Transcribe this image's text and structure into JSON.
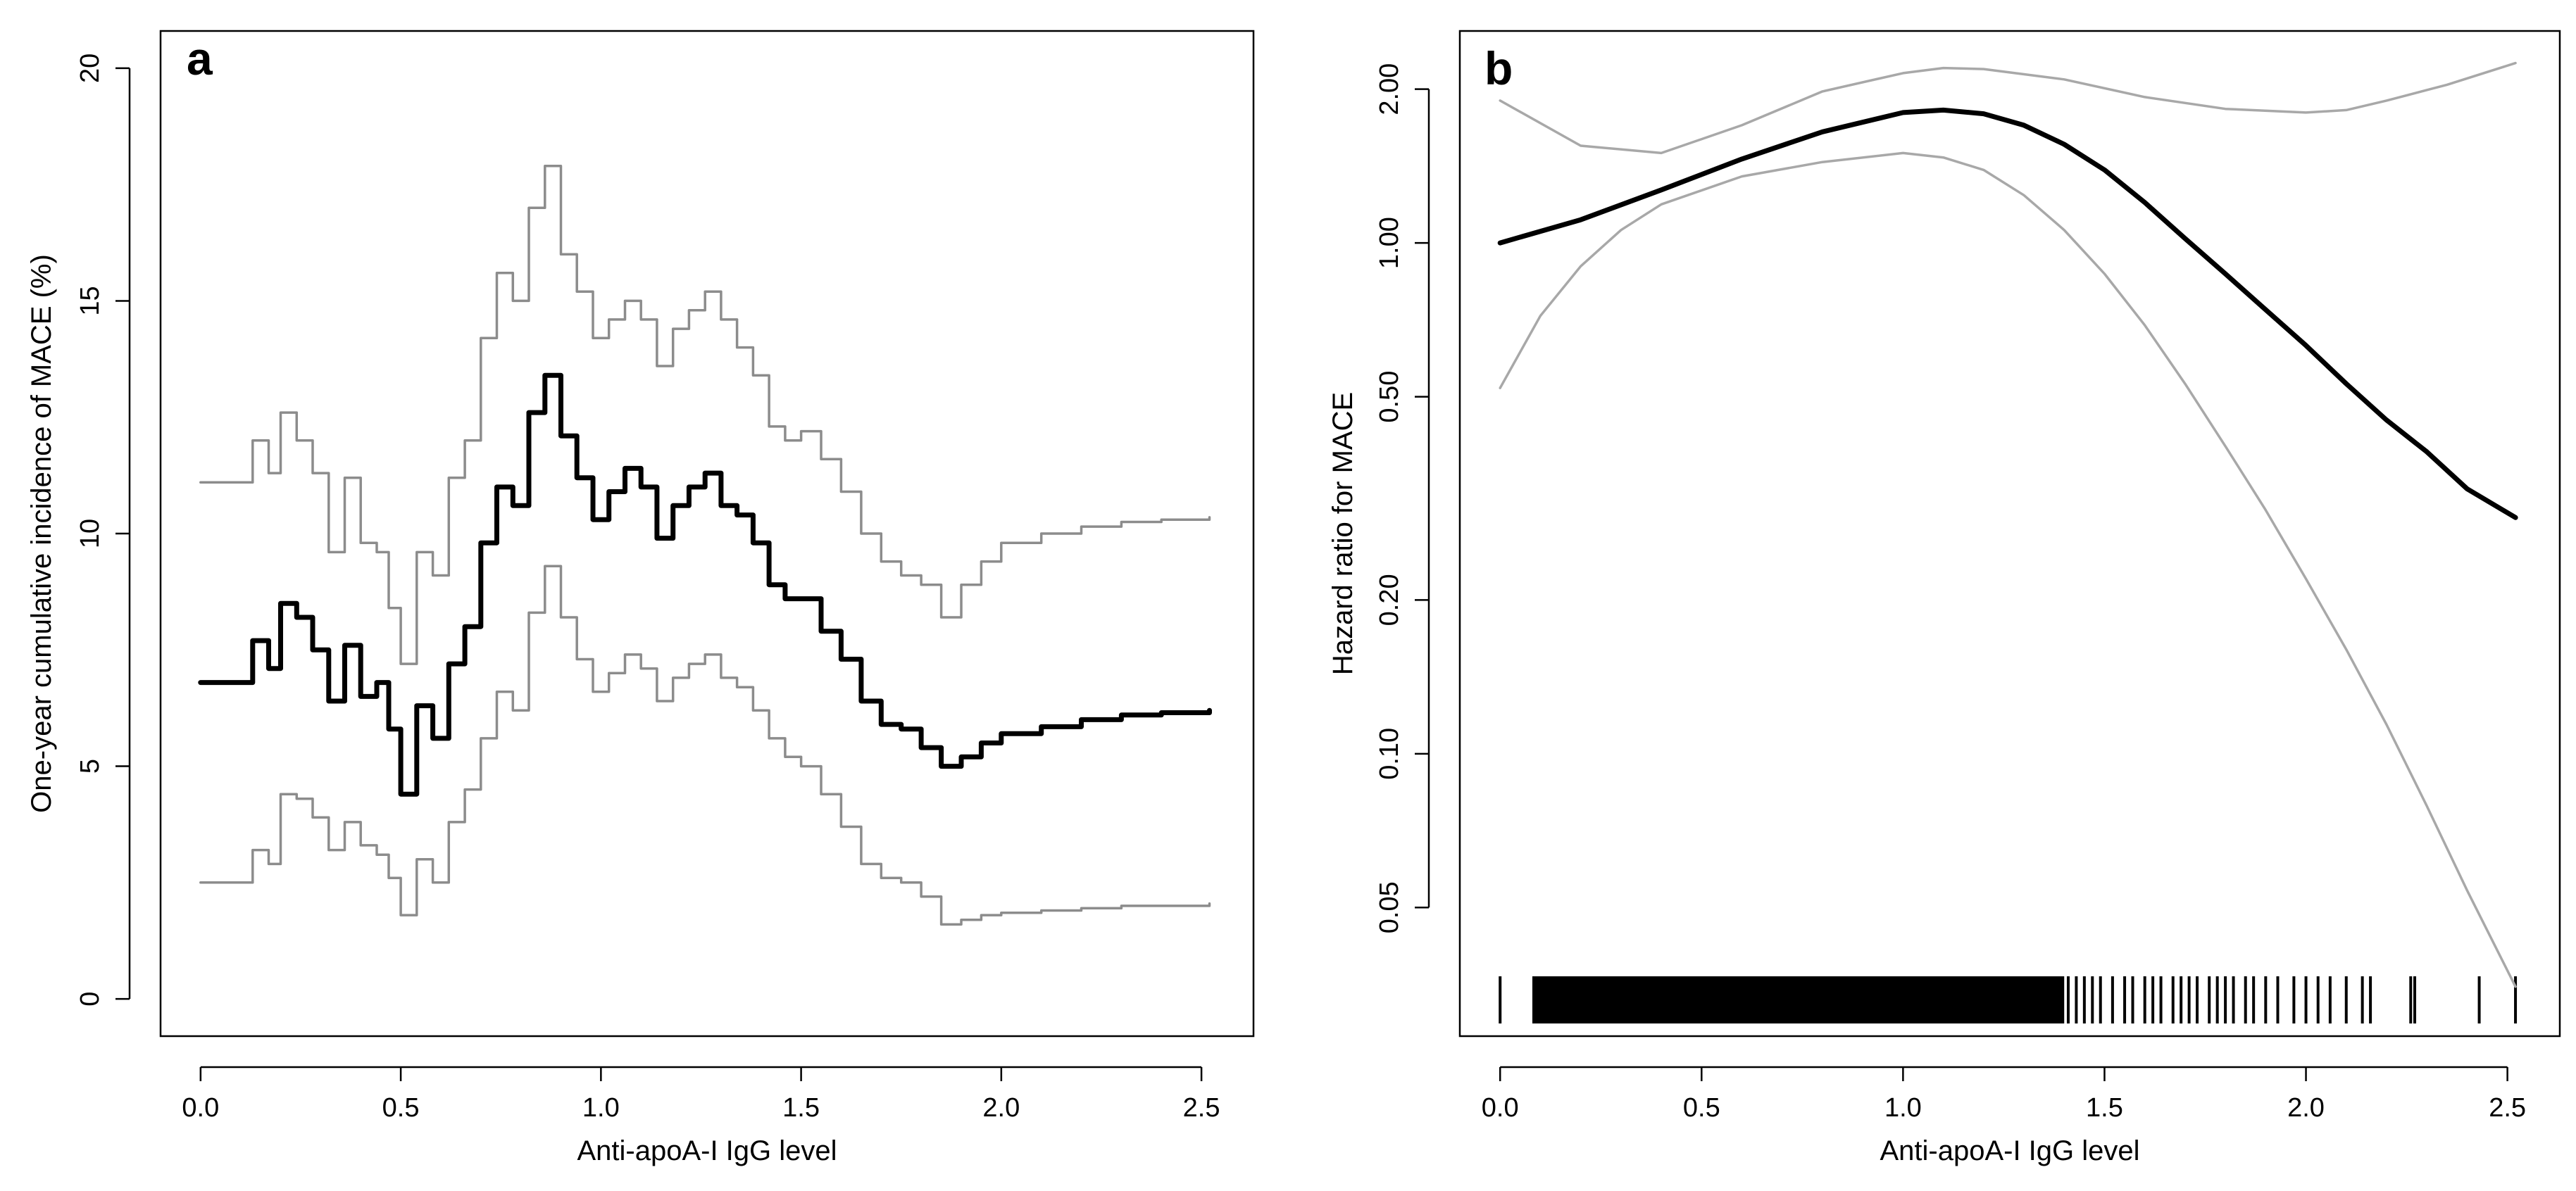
{
  "chart_data": [
    {
      "id": "a",
      "type": "line",
      "panel_label": "a",
      "xlabel": "Anti-apoA-I IgG level",
      "ylabel": "One-year cumulative incidence of MACE (%)",
      "xlim": [
        -0.1,
        2.63
      ],
      "ylim": [
        -0.8,
        20.8
      ],
      "x_ticks": [
        0,
        0.5,
        1,
        1.5,
        2,
        2.5
      ],
      "x_tick_labels": [
        "0.0",
        "0.5",
        "1.0",
        "1.5",
        "2.0",
        "2.5"
      ],
      "y_ticks": [
        0,
        5,
        10,
        15,
        20
      ],
      "y_tick_labels": [
        "0",
        "5",
        "10",
        "15",
        "20"
      ],
      "series": [
        {
          "name": "Estimate",
          "color": "#000000",
          "x": [
            0,
            0.1,
            0.13,
            0.17,
            0.2,
            0.24,
            0.28,
            0.32,
            0.36,
            0.4,
            0.44,
            0.47,
            0.5,
            0.54,
            0.58,
            0.62,
            0.66,
            0.7,
            0.74,
            0.78,
            0.82,
            0.86,
            0.9,
            0.94,
            0.98,
            1.02,
            1.06,
            1.1,
            1.14,
            1.18,
            1.22,
            1.26,
            1.3,
            1.34,
            1.38,
            1.42,
            1.46,
            1.5,
            1.55,
            1.6,
            1.65,
            1.7,
            1.75,
            1.8,
            1.85,
            1.9,
            1.95,
            2.0,
            2.1,
            2.2,
            2.3,
            2.4,
            2.52
          ],
          "values": [
            6.8,
            6.8,
            7.7,
            7.1,
            8.5,
            8.2,
            7.5,
            6.4,
            7.6,
            6.5,
            6.8,
            5.8,
            4.4,
            6.3,
            5.6,
            7.2,
            8.0,
            9.8,
            11.0,
            10.6,
            12.6,
            13.4,
            12.1,
            11.2,
            10.3,
            10.9,
            11.4,
            11.0,
            9.9,
            10.6,
            11.0,
            11.3,
            10.6,
            10.4,
            9.8,
            8.9,
            8.6,
            8.6,
            7.9,
            7.3,
            6.4,
            5.9,
            5.8,
            5.4,
            5.0,
            5.2,
            5.5,
            5.7,
            5.85,
            6.0,
            6.1,
            6.15,
            6.2
          ]
        },
        {
          "name": "Upper bound",
          "color": "#8c8c8c",
          "x": [
            0,
            0.1,
            0.13,
            0.17,
            0.2,
            0.24,
            0.28,
            0.32,
            0.36,
            0.4,
            0.44,
            0.47,
            0.5,
            0.54,
            0.58,
            0.62,
            0.66,
            0.7,
            0.74,
            0.78,
            0.82,
            0.86,
            0.9,
            0.94,
            0.98,
            1.02,
            1.06,
            1.1,
            1.14,
            1.18,
            1.22,
            1.26,
            1.3,
            1.34,
            1.38,
            1.42,
            1.46,
            1.5,
            1.55,
            1.6,
            1.65,
            1.7,
            1.75,
            1.8,
            1.85,
            1.9,
            1.95,
            2.0,
            2.1,
            2.2,
            2.3,
            2.4,
            2.52
          ],
          "values": [
            11.1,
            11.1,
            12.0,
            11.3,
            12.6,
            12.0,
            11.3,
            9.6,
            11.2,
            9.8,
            9.6,
            8.4,
            7.2,
            9.6,
            9.1,
            11.2,
            12.0,
            14.2,
            15.6,
            15.0,
            17.0,
            17.9,
            16.0,
            15.2,
            14.2,
            14.6,
            15.0,
            14.6,
            13.6,
            14.4,
            14.8,
            15.2,
            14.6,
            14.0,
            13.4,
            12.3,
            12.0,
            12.2,
            11.6,
            10.9,
            10.0,
            9.4,
            9.1,
            8.9,
            8.2,
            8.9,
            9.4,
            9.8,
            10.0,
            10.15,
            10.25,
            10.3,
            10.35
          ]
        },
        {
          "name": "Lower bound",
          "color": "#8c8c8c",
          "x": [
            0,
            0.1,
            0.13,
            0.17,
            0.2,
            0.24,
            0.28,
            0.32,
            0.36,
            0.4,
            0.44,
            0.47,
            0.5,
            0.54,
            0.58,
            0.62,
            0.66,
            0.7,
            0.74,
            0.78,
            0.82,
            0.86,
            0.9,
            0.94,
            0.98,
            1.02,
            1.06,
            1.1,
            1.14,
            1.18,
            1.22,
            1.26,
            1.3,
            1.34,
            1.38,
            1.42,
            1.46,
            1.5,
            1.55,
            1.6,
            1.65,
            1.7,
            1.75,
            1.8,
            1.85,
            1.9,
            1.95,
            2.0,
            2.1,
            2.2,
            2.3,
            2.4,
            2.52
          ],
          "values": [
            2.5,
            2.5,
            3.2,
            2.9,
            4.4,
            4.3,
            3.9,
            3.2,
            3.8,
            3.3,
            3.1,
            2.6,
            1.8,
            3.0,
            2.5,
            3.8,
            4.5,
            5.6,
            6.6,
            6.2,
            8.3,
            9.3,
            8.2,
            7.3,
            6.6,
            7.0,
            7.4,
            7.1,
            6.4,
            6.9,
            7.2,
            7.4,
            6.9,
            6.7,
            6.2,
            5.6,
            5.2,
            5.0,
            4.4,
            3.7,
            2.9,
            2.6,
            2.5,
            2.2,
            1.6,
            1.7,
            1.8,
            1.85,
            1.9,
            1.95,
            2.0,
            2.0,
            2.05
          ]
        }
      ]
    },
    {
      "id": "b",
      "type": "line",
      "panel_label": "b",
      "xlabel": "Anti-apoA-I IgG level",
      "ylabel": "Hazard ratio for MACE",
      "y_scale": "log",
      "xlim": [
        -0.1,
        2.63
      ],
      "ylim": [
        0.028,
        2.6
      ],
      "x_ticks": [
        0,
        0.5,
        1,
        1.5,
        2,
        2.5
      ],
      "x_tick_labels": [
        "0.0",
        "0.5",
        "1.0",
        "1.5",
        "2.0",
        "2.5"
      ],
      "y_ticks": [
        0.05,
        0.1,
        0.2,
        0.5,
        1,
        2
      ],
      "y_tick_labels": [
        "0.05",
        "0.10",
        "0.20",
        "0.50",
        "1.00",
        "2.00"
      ],
      "series": [
        {
          "name": "Hazard ratio",
          "color": "#000000",
          "x": [
            0,
            0.2,
            0.4,
            0.6,
            0.8,
            1.0,
            1.1,
            1.2,
            1.3,
            1.4,
            1.5,
            1.6,
            1.7,
            1.8,
            1.9,
            2.0,
            2.1,
            2.2,
            2.3,
            2.4,
            2.52
          ],
          "values": [
            1.0,
            1.11,
            1.27,
            1.46,
            1.65,
            1.8,
            1.82,
            1.79,
            1.7,
            1.56,
            1.39,
            1.2,
            1.02,
            0.87,
            0.74,
            0.63,
            0.53,
            0.45,
            0.39,
            0.33,
            0.29
          ]
        },
        {
          "name": "Upper bound",
          "color": "#a8a8a8",
          "x": [
            0,
            0.2,
            0.4,
            0.6,
            0.8,
            1.0,
            1.1,
            1.2,
            1.4,
            1.6,
            1.8,
            2.0,
            2.1,
            2.2,
            2.35,
            2.52
          ],
          "values": [
            1.9,
            1.55,
            1.5,
            1.7,
            1.98,
            2.15,
            2.2,
            2.19,
            2.09,
            1.93,
            1.83,
            1.8,
            1.82,
            1.9,
            2.04,
            2.25
          ]
        },
        {
          "name": "Lower bound",
          "color": "#a8a8a8",
          "x": [
            0,
            0.1,
            0.2,
            0.3,
            0.4,
            0.6,
            0.8,
            1.0,
            1.1,
            1.2,
            1.3,
            1.4,
            1.5,
            1.6,
            1.7,
            1.8,
            1.9,
            2.0,
            2.1,
            2.2,
            2.3,
            2.4,
            2.52
          ],
          "values": [
            0.52,
            0.72,
            0.9,
            1.06,
            1.19,
            1.35,
            1.44,
            1.5,
            1.47,
            1.39,
            1.24,
            1.06,
            0.87,
            0.69,
            0.53,
            0.4,
            0.3,
            0.22,
            0.16,
            0.114,
            0.079,
            0.054,
            0.035
          ]
        }
      ],
      "rug": {
        "color": "#000000",
        "solid_from": 0.08,
        "solid_to": 1.4,
        "ticks": [
          0,
          1.41,
          1.43,
          1.45,
          1.47,
          1.49,
          1.52,
          1.55,
          1.57,
          1.6,
          1.62,
          1.64,
          1.67,
          1.69,
          1.71,
          1.73,
          1.76,
          1.78,
          1.8,
          1.82,
          1.85,
          1.87,
          1.9,
          1.93,
          1.97,
          2.0,
          2.03,
          2.06,
          2.1,
          2.14,
          2.16,
          2.26,
          2.27,
          2.43,
          2.52
        ]
      }
    }
  ]
}
